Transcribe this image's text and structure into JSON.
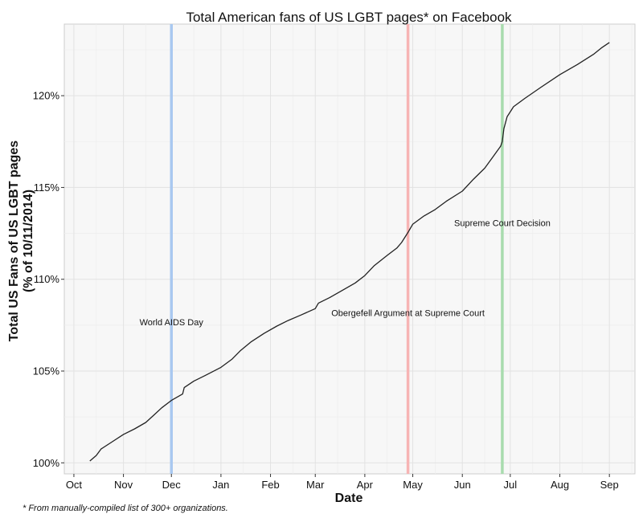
{
  "chart_data": {
    "type": "line",
    "title": "Total American fans of US LGBT pages* on Facebook",
    "xlabel": "Date",
    "ylabel_line1": "Total US Fans of US LGBT pages",
    "ylabel_line2": "(% of 10/11/2014)",
    "footnote": "* From manually-compiled list of 300+ organizations.",
    "x_ticks": [
      {
        "label": "Oct",
        "date": "2014-10-01"
      },
      {
        "label": "Nov",
        "date": "2014-11-01"
      },
      {
        "label": "Dec",
        "date": "2014-12-01"
      },
      {
        "label": "Jan",
        "date": "2015-01-01"
      },
      {
        "label": "Feb",
        "date": "2015-02-01"
      },
      {
        "label": "Mar",
        "date": "2015-03-01"
      },
      {
        "label": "Apr",
        "date": "2015-04-01"
      },
      {
        "label": "May",
        "date": "2015-05-01"
      },
      {
        "label": "Jun",
        "date": "2015-06-01"
      },
      {
        "label": "Jul",
        "date": "2015-07-01"
      },
      {
        "label": "Aug",
        "date": "2015-08-01"
      },
      {
        "label": "Sep",
        "date": "2015-09-01"
      }
    ],
    "y_ticks": [
      {
        "label": "100%",
        "value": 100
      },
      {
        "label": "105%",
        "value": 105
      },
      {
        "label": "110%",
        "value": 110
      },
      {
        "label": "115%",
        "value": 115
      },
      {
        "label": "120%",
        "value": 120
      }
    ],
    "xlim": [
      "2014-09-25",
      "2015-09-17"
    ],
    "ylim": [
      99.4,
      123.9
    ],
    "grid": true,
    "series": [
      {
        "color": "#222222",
        "points": [
          {
            "date": "2014-10-11",
            "value": 100.1
          },
          {
            "date": "2014-10-15",
            "value": 100.4
          },
          {
            "date": "2014-10-18",
            "value": 100.75
          },
          {
            "date": "2014-10-25",
            "value": 101.15
          },
          {
            "date": "2014-11-01",
            "value": 101.55
          },
          {
            "date": "2014-11-08",
            "value": 101.85
          },
          {
            "date": "2014-11-15",
            "value": 102.2
          },
          {
            "date": "2014-11-20",
            "value": 102.6
          },
          {
            "date": "2014-11-25",
            "value": 103.0
          },
          {
            "date": "2014-12-01",
            "value": 103.4
          },
          {
            "date": "2014-12-08",
            "value": 103.75
          },
          {
            "date": "2014-12-09",
            "value": 104.1
          },
          {
            "date": "2014-12-15",
            "value": 104.45
          },
          {
            "date": "2014-12-22",
            "value": 104.75
          },
          {
            "date": "2015-01-01",
            "value": 105.2
          },
          {
            "date": "2015-01-08",
            "value": 105.65
          },
          {
            "date": "2015-01-13",
            "value": 106.1
          },
          {
            "date": "2015-01-20",
            "value": 106.6
          },
          {
            "date": "2015-01-28",
            "value": 107.05
          },
          {
            "date": "2015-02-05",
            "value": 107.45
          },
          {
            "date": "2015-02-12",
            "value": 107.75
          },
          {
            "date": "2015-02-20",
            "value": 108.05
          },
          {
            "date": "2015-03-01",
            "value": 108.4
          },
          {
            "date": "2015-03-03",
            "value": 108.7
          },
          {
            "date": "2015-03-10",
            "value": 109.0
          },
          {
            "date": "2015-03-18",
            "value": 109.4
          },
          {
            "date": "2015-03-26",
            "value": 109.8
          },
          {
            "date": "2015-04-01",
            "value": 110.2
          },
          {
            "date": "2015-04-07",
            "value": 110.75
          },
          {
            "date": "2015-04-15",
            "value": 111.3
          },
          {
            "date": "2015-04-21",
            "value": 111.7
          },
          {
            "date": "2015-04-24",
            "value": 112.0
          },
          {
            "date": "2015-04-28",
            "value": 112.55
          },
          {
            "date": "2015-05-01",
            "value": 113.0
          },
          {
            "date": "2015-05-08",
            "value": 113.45
          },
          {
            "date": "2015-05-15",
            "value": 113.8
          },
          {
            "date": "2015-05-22",
            "value": 114.25
          },
          {
            "date": "2015-06-01",
            "value": 114.8
          },
          {
            "date": "2015-06-08",
            "value": 115.45
          },
          {
            "date": "2015-06-15",
            "value": 116.05
          },
          {
            "date": "2015-06-20",
            "value": 116.65
          },
          {
            "date": "2015-06-25",
            "value": 117.25
          },
          {
            "date": "2015-06-26",
            "value": 117.5
          },
          {
            "date": "2015-06-27",
            "value": 118.2
          },
          {
            "date": "2015-06-29",
            "value": 118.85
          },
          {
            "date": "2015-07-03",
            "value": 119.4
          },
          {
            "date": "2015-07-10",
            "value": 119.85
          },
          {
            "date": "2015-07-20",
            "value": 120.45
          },
          {
            "date": "2015-08-01",
            "value": 121.15
          },
          {
            "date": "2015-08-12",
            "value": 121.7
          },
          {
            "date": "2015-08-22",
            "value": 122.25
          },
          {
            "date": "2015-08-27",
            "value": 122.6
          },
          {
            "date": "2015-09-01",
            "value": 122.9
          }
        ]
      }
    ],
    "events": [
      {
        "label": "World AIDS Day",
        "date": "2014-12-01",
        "label_value": 107.5,
        "color": "#a9c8f0"
      },
      {
        "label": "Obergefell Argument at Supreme Court",
        "date": "2015-04-28",
        "label_value": 108.0,
        "color": "#f7b4b4"
      },
      {
        "label": "Supreme Court Decision",
        "date": "2015-06-26",
        "label_value": 112.9,
        "color": "#a8dcae"
      }
    ]
  }
}
